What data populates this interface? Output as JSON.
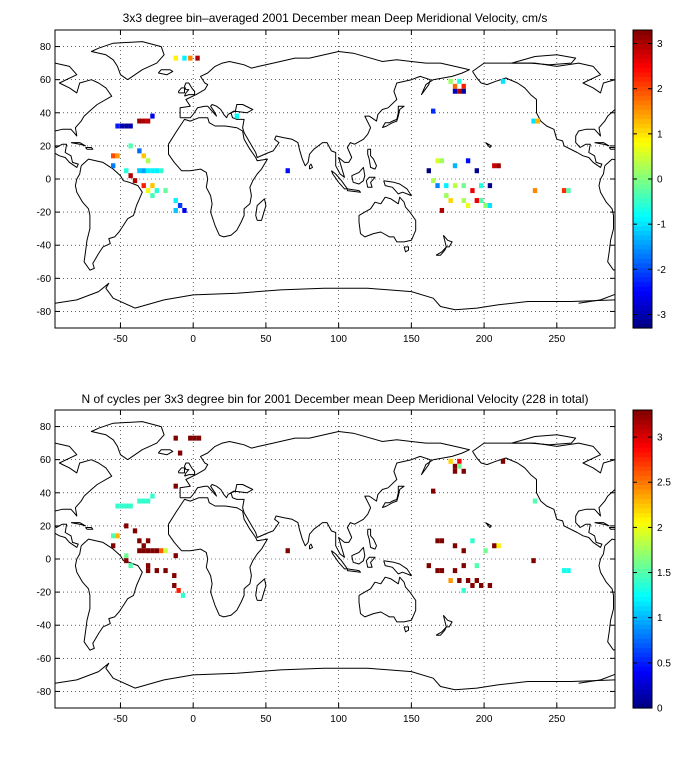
{
  "chart_data": [
    {
      "type": "heatmap",
      "title": "3x3 degree bin–averaged 2001 December mean Deep Meridional Velocity, cm/s",
      "xlabel": "",
      "ylabel": "",
      "xlim": [
        -95,
        290
      ],
      "ylim": [
        -90,
        90
      ],
      "xticks": [
        -50,
        0,
        50,
        100,
        150,
        200,
        250
      ],
      "yticks": [
        -80,
        -60,
        -40,
        -20,
        0,
        20,
        40,
        60,
        80
      ],
      "grid": true,
      "colorbar": {
        "range": [
          -3.3,
          3.3
        ],
        "ticks": [
          -3,
          -2,
          -1,
          0,
          1,
          2,
          3
        ]
      },
      "cells": [
        [
          -12,
          73,
          0.9
        ],
        [
          -6,
          73,
          -0.9
        ],
        [
          -2,
          73,
          1.6
        ],
        [
          3,
          73,
          3.0
        ],
        [
          -52,
          32,
          -2.3
        ],
        [
          -49,
          32,
          -3.0
        ],
        [
          -46,
          32,
          -3.1
        ],
        [
          -43,
          32,
          -3.0
        ],
        [
          -37,
          35,
          3.1
        ],
        [
          -34,
          35,
          3.0
        ],
        [
          -31,
          35,
          2.9
        ],
        [
          -28,
          38,
          -2.6
        ],
        [
          -55,
          14,
          2.0
        ],
        [
          -52,
          14,
          1.5
        ],
        [
          -43,
          20,
          -0.3
        ],
        [
          -37,
          17,
          -1.8
        ],
        [
          -34,
          14,
          1.2
        ],
        [
          -31,
          11,
          0.3
        ],
        [
          -55,
          8,
          -1.7
        ],
        [
          -46,
          5,
          -0.6
        ],
        [
          -43,
          2,
          3.0
        ],
        [
          -40,
          -1,
          3.0
        ],
        [
          -37,
          5,
          -1.2
        ],
        [
          -34,
          5,
          -1.4
        ],
        [
          -31,
          5,
          -0.9
        ],
        [
          -28,
          5,
          -0.9
        ],
        [
          -25,
          5,
          -0.9
        ],
        [
          -22,
          5,
          -0.5
        ],
        [
          -34,
          -4,
          2.3
        ],
        [
          -31,
          -7,
          0.7
        ],
        [
          -28,
          -10,
          -0.4
        ],
        [
          -25,
          -7,
          -0.6
        ],
        [
          -19,
          -7,
          -0.2
        ],
        [
          -12,
          -13,
          -0.9
        ],
        [
          -12,
          -19,
          -1.2
        ],
        [
          -9,
          -16,
          -2.1
        ],
        [
          -6,
          -19,
          -2.6
        ],
        [
          -28,
          -4,
          1.2
        ],
        [
          30,
          38,
          -0.8
        ],
        [
          65,
          5,
          -2.4
        ],
        [
          177,
          59,
          0.2
        ],
        [
          183,
          59,
          -0.6
        ],
        [
          180,
          56,
          1.8
        ],
        [
          186,
          56,
          2.3
        ],
        [
          180,
          53,
          -2.9
        ],
        [
          183,
          53,
          3.0
        ],
        [
          186,
          53,
          -3.1
        ],
        [
          213,
          59,
          -1.0
        ],
        [
          165,
          41,
          -2.2
        ],
        [
          234,
          35,
          -1.0
        ],
        [
          237,
          35,
          1.3
        ],
        [
          168,
          11,
          0.6
        ],
        [
          171,
          11,
          0.2
        ],
        [
          180,
          8,
          -1.3
        ],
        [
          189,
          11,
          -2.4
        ],
        [
          195,
          5,
          -3.2
        ],
        [
          207,
          8,
          2.8
        ],
        [
          210,
          8,
          3.1
        ],
        [
          162,
          5,
          -3.3
        ],
        [
          165,
          -1,
          0.3
        ],
        [
          168,
          -4,
          -1.6
        ],
        [
          174,
          -4,
          -0.9
        ],
        [
          180,
          -4,
          0.4
        ],
        [
          186,
          -4,
          -0.1
        ],
        [
          192,
          -7,
          2.6
        ],
        [
          198,
          -4,
          -0.6
        ],
        [
          204,
          -4,
          -3.2
        ],
        [
          174,
          -10,
          0.2
        ],
        [
          177,
          -13,
          1.1
        ],
        [
          186,
          -13,
          0.3
        ],
        [
          189,
          -16,
          0.7
        ],
        [
          195,
          -13,
          2.6
        ],
        [
          198,
          -13,
          -0.3
        ],
        [
          201,
          -16,
          0.1
        ],
        [
          204,
          -16,
          -1.0
        ],
        [
          171,
          -19,
          3.0
        ],
        [
          235,
          -7,
          1.6
        ],
        [
          255,
          -7,
          2.2
        ],
        [
          258,
          -7,
          -0.3
        ]
      ]
    },
    {
      "type": "heatmap",
      "title": "N of cycles per 3x3 degree bin for 2001 December mean Deep Meridional Velocity (228 in total)",
      "xlabel": "",
      "ylabel": "",
      "xlim": [
        -95,
        290
      ],
      "ylim": [
        -90,
        90
      ],
      "xticks": [
        -50,
        0,
        50,
        100,
        150,
        200,
        250
      ],
      "yticks": [
        -80,
        -60,
        -40,
        -20,
        0,
        20,
        40,
        60,
        80
      ],
      "grid": true,
      "colorbar": {
        "range": [
          0,
          3.3
        ],
        "ticks": [
          0,
          0.5,
          1,
          1.5,
          2,
          2.5,
          3
        ]
      },
      "cells": [
        [
          -12,
          73,
          3.3
        ],
        [
          -2,
          73,
          3.3
        ],
        [
          1,
          73,
          3.3
        ],
        [
          4,
          73,
          3.3
        ],
        [
          -9,
          64,
          3.3
        ],
        [
          -52,
          32,
          1.4
        ],
        [
          -49,
          32,
          1.4
        ],
        [
          -46,
          32,
          1.4
        ],
        [
          -43,
          32,
          1.4
        ],
        [
          -37,
          35,
          1.4
        ],
        [
          -34,
          35,
          1.4
        ],
        [
          -31,
          35,
          1.4
        ],
        [
          -28,
          38,
          1.4
        ],
        [
          -12,
          44,
          3.3
        ],
        [
          -55,
          14,
          1.5
        ],
        [
          -52,
          14,
          2.3
        ],
        [
          -46,
          20,
          3.3
        ],
        [
          -40,
          17,
          3.3
        ],
        [
          -37,
          11,
          3.3
        ],
        [
          -34,
          8,
          3.3
        ],
        [
          -31,
          11,
          3.3
        ],
        [
          -37,
          5,
          3.3
        ],
        [
          -34,
          5,
          3.3
        ],
        [
          -31,
          5,
          3.3
        ],
        [
          -28,
          5,
          3.3
        ],
        [
          -25,
          5,
          3.3
        ],
        [
          -22,
          5,
          2.6
        ],
        [
          -19,
          5,
          1.9
        ],
        [
          -55,
          8,
          3.3
        ],
        [
          -46,
          2,
          1.6
        ],
        [
          -46,
          -1,
          3.3
        ],
        [
          -43,
          -4,
          1.5
        ],
        [
          -31,
          -4,
          3.3
        ],
        [
          -31,
          -7,
          3.3
        ],
        [
          -25,
          -7,
          3.3
        ],
        [
          -19,
          -7,
          3.3
        ],
        [
          -13,
          -10,
          3.3
        ],
        [
          -13,
          -16,
          3.3
        ],
        [
          -10,
          -19,
          2.8
        ],
        [
          -7,
          -22,
          1.4
        ],
        [
          -12,
          2,
          3.3
        ],
        [
          65,
          5,
          3.3
        ],
        [
          177,
          59,
          2.2
        ],
        [
          183,
          59,
          2.9
        ],
        [
          180,
          56,
          3.3
        ],
        [
          183,
          56,
          1.6
        ],
        [
          180,
          53,
          3.3
        ],
        [
          186,
          53,
          3.3
        ],
        [
          213,
          59,
          3.3
        ],
        [
          165,
          41,
          3.3
        ],
        [
          235,
          35,
          1.5
        ],
        [
          168,
          11,
          3.3
        ],
        [
          171,
          11,
          3.3
        ],
        [
          180,
          8,
          3.3
        ],
        [
          186,
          5,
          3.3
        ],
        [
          192,
          11,
          1.4
        ],
        [
          201,
          5,
          1.6
        ],
        [
          207,
          8,
          3.3
        ],
        [
          210,
          8,
          2.1
        ],
        [
          162,
          -4,
          3.3
        ],
        [
          168,
          -7,
          3.3
        ],
        [
          171,
          -7,
          3.3
        ],
        [
          180,
          -7,
          3.3
        ],
        [
          186,
          -4,
          3.3
        ],
        [
          195,
          -4,
          1.5
        ],
        [
          177,
          -13,
          2.4
        ],
        [
          183,
          -13,
          3.3
        ],
        [
          189,
          -13,
          3.3
        ],
        [
          195,
          -13,
          3.3
        ],
        [
          198,
          -16,
          3.3
        ],
        [
          204,
          -16,
          3.3
        ],
        [
          186,
          -19,
          1.4
        ],
        [
          192,
          -16,
          3.3
        ],
        [
          234,
          -1,
          3.3
        ],
        [
          255,
          -7,
          1.3
        ],
        [
          258,
          -7,
          1.3
        ]
      ]
    }
  ]
}
